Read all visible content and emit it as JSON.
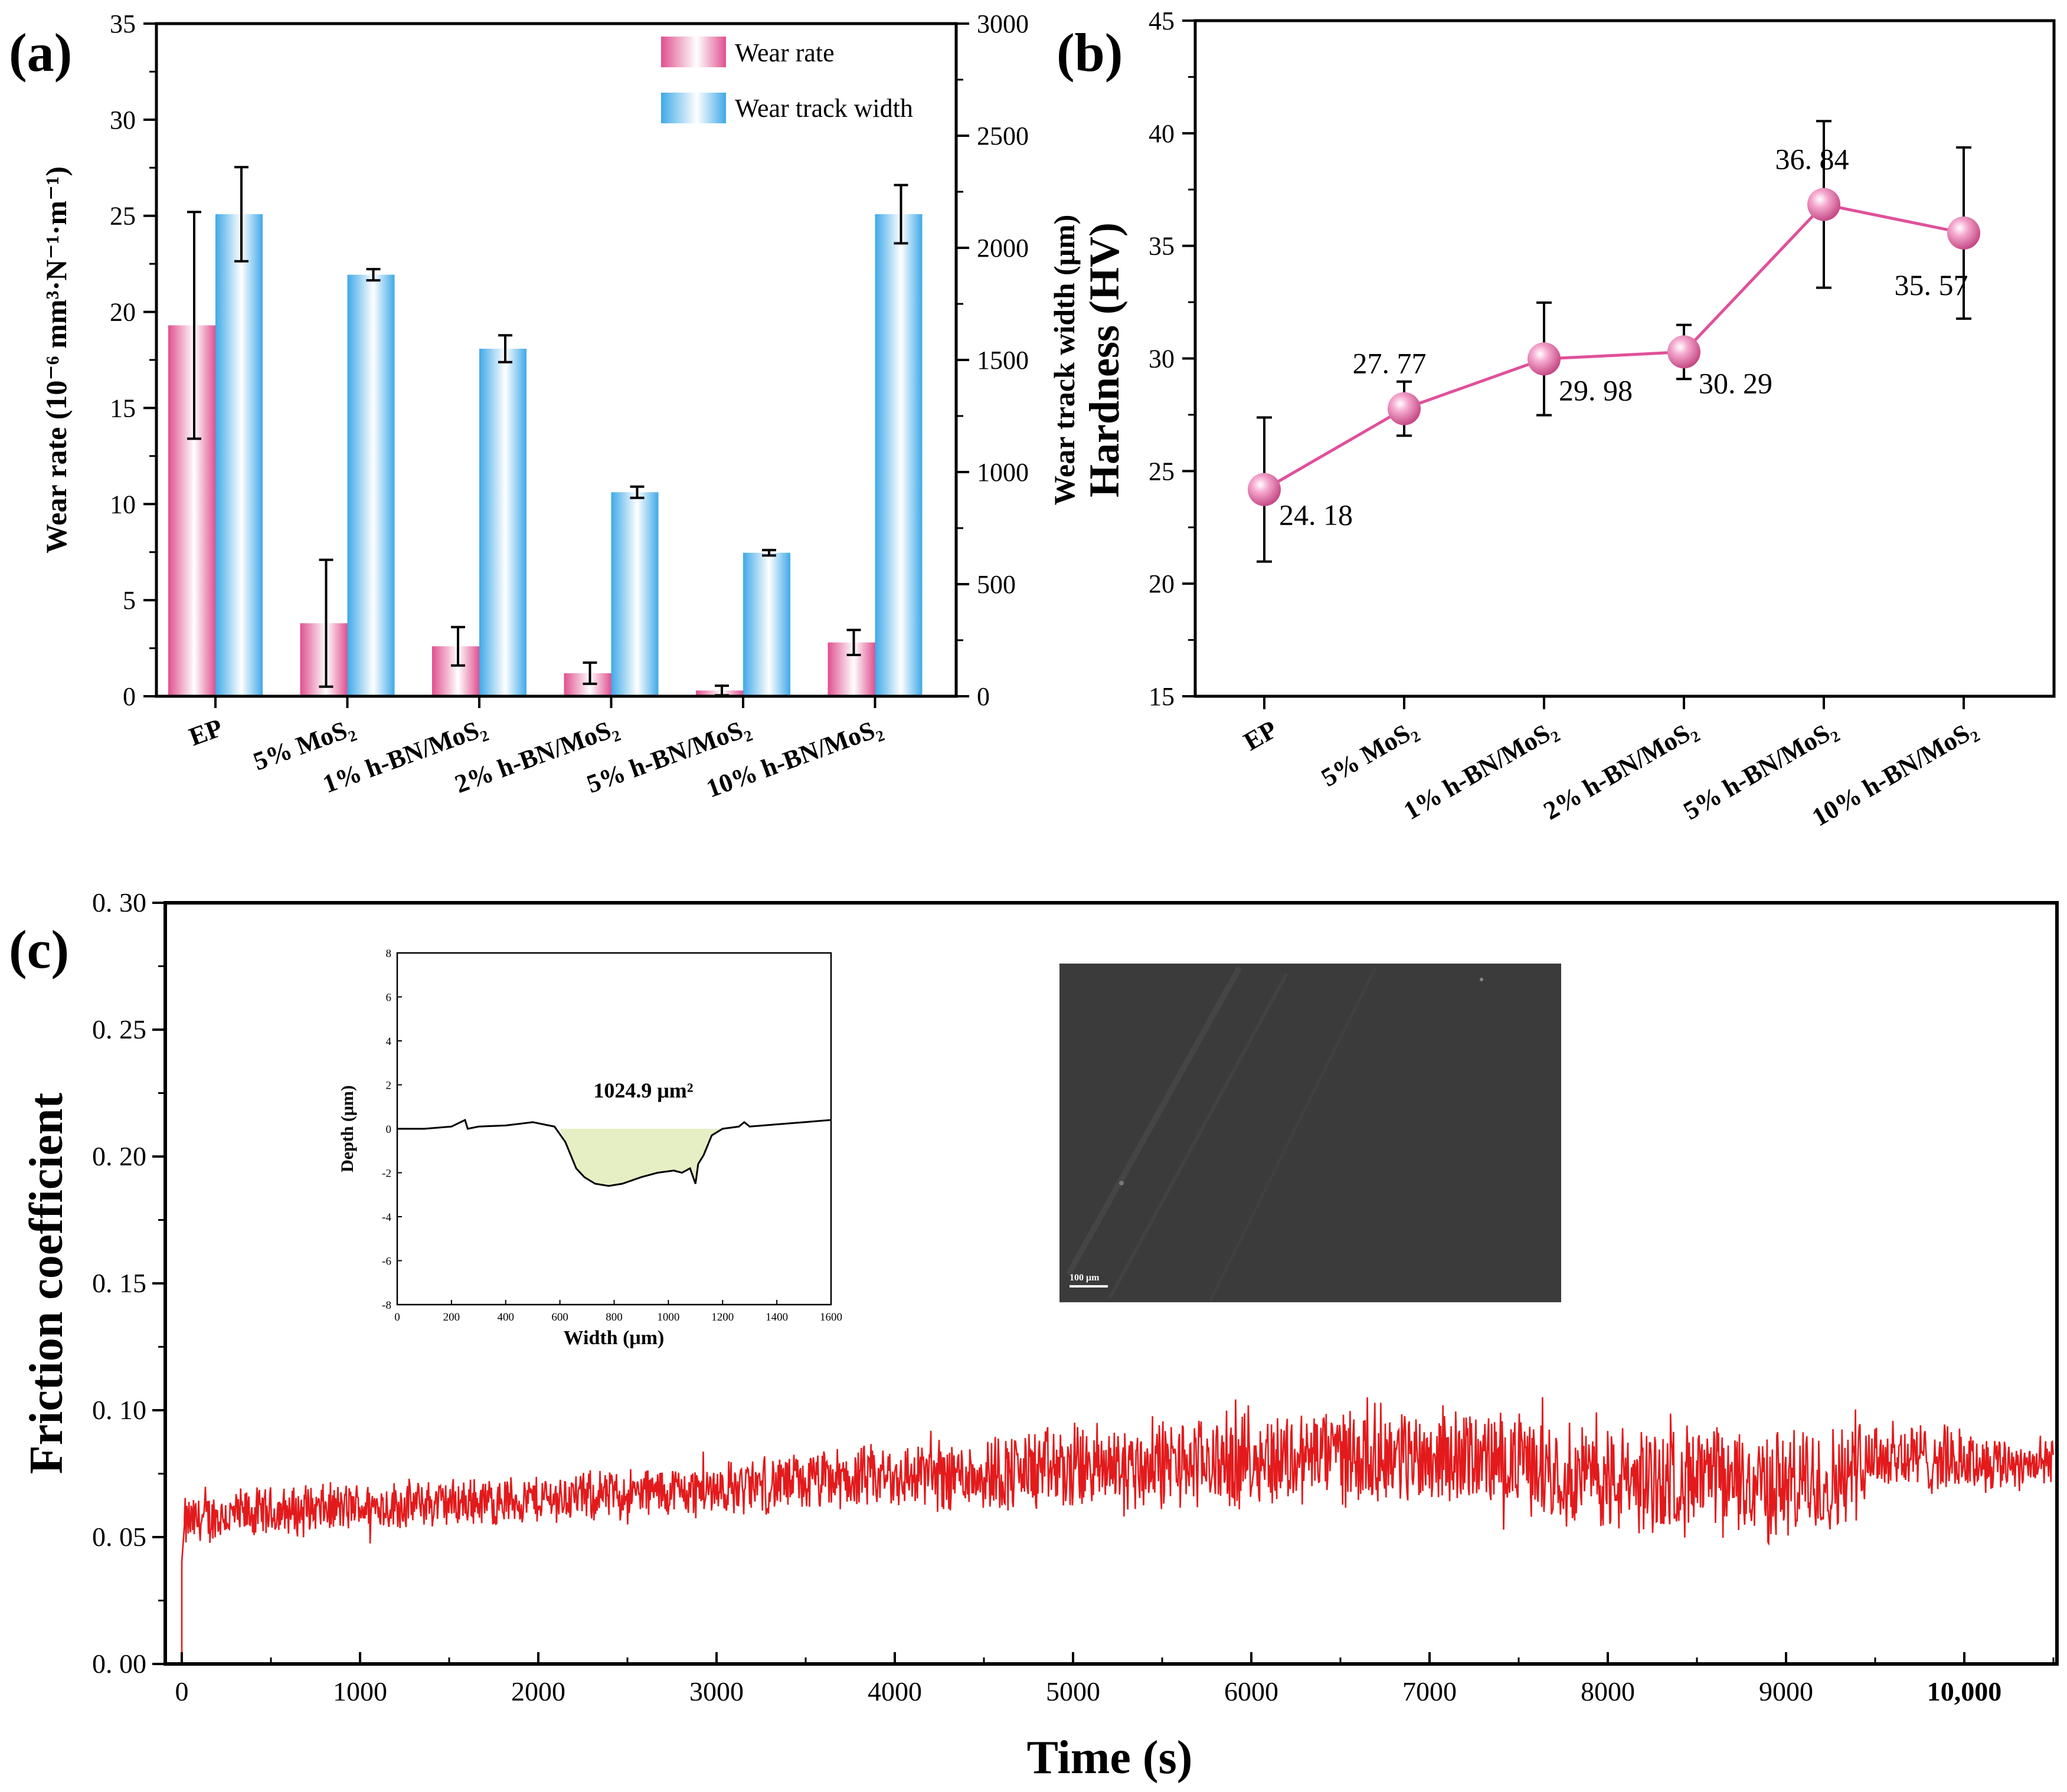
{
  "panel_labels": {
    "a": "(a)",
    "b": "(b)",
    "c": "(c)"
  },
  "colors": {
    "pink": "#e0508f",
    "blue": "#3fa9e8",
    "red": "#e31a1c",
    "line_pink": "#e0509a",
    "inset_fill": "#e6efc4"
  },
  "chart_data": [
    {
      "id": "a",
      "type": "bar",
      "categories": [
        "EP",
        "5% MoS₂",
        "1% h-BN/MoS₂",
        "2% h-BN/MoS₂",
        "5% h-BN/MoS₂",
        "10% h-BN/MoS₂"
      ],
      "ylabel": "Wear rate (10⁻⁶ mm³·N⁻¹·m⁻¹)",
      "y2label": "Wear track width (μm)",
      "ylim": [
        0,
        35
      ],
      "y2lim": [
        0,
        3000
      ],
      "yticks": [
        "0",
        "5",
        "10",
        "15",
        "20",
        "25",
        "30",
        "35"
      ],
      "y2ticks": [
        "0",
        "500",
        "1000",
        "1500",
        "2000",
        "2500",
        "3000"
      ],
      "legend": [
        "Wear rate",
        "Wear track width"
      ],
      "legend_position": "top-right",
      "series": [
        {
          "name": "Wear rate",
          "axis": "left",
          "values": [
            19.3,
            3.8,
            2.6,
            1.2,
            0.3,
            2.8
          ],
          "errors": [
            5.9,
            3.3,
            1.0,
            0.55,
            0.25,
            0.65
          ]
        },
        {
          "name": "Wear track width",
          "axis": "right",
          "values": [
            2150,
            1880,
            1550,
            910,
            640,
            2150
          ],
          "errors": [
            210,
            25,
            60,
            25,
            12,
            130
          ]
        }
      ]
    },
    {
      "id": "b",
      "type": "line",
      "categories": [
        "EP",
        "5% MoS₂",
        "1% h-BN/MoS₂",
        "2% h-BN/MoS₂",
        "5% h-BN/MoS₂",
        "10% h-BN/MoS₂"
      ],
      "ylabel": "Hardness (HV)",
      "ylim": [
        15,
        45
      ],
      "yticks": [
        "15",
        "20",
        "25",
        "30",
        "35",
        "40",
        "45"
      ],
      "values": [
        24.18,
        27.77,
        29.98,
        30.29,
        36.84,
        35.57
      ],
      "errors": [
        3.2,
        1.2,
        2.5,
        1.2,
        3.7,
        3.8
      ],
      "data_labels": [
        "24. 18",
        "27. 77",
        "29. 98",
        "30. 29",
        "36. 84",
        "35. 57"
      ]
    },
    {
      "id": "c",
      "type": "line",
      "xlabel": "Time (s)",
      "ylabel": "Friction coefficient",
      "xlim": [
        0,
        10500
      ],
      "ylim": [
        0,
        0.3
      ],
      "xticks": [
        "0",
        "1000",
        "2000",
        "3000",
        "4000",
        "5000",
        "6000",
        "7000",
        "8000",
        "9000",
        "10,000"
      ],
      "yticks": [
        "0. 00",
        "0. 05",
        "0. 10",
        "0. 15",
        "0. 20",
        "0. 25",
        "0. 30"
      ],
      "trend": {
        "t": [
          0,
          200,
          1000,
          2000,
          3000,
          4000,
          5000,
          6000,
          6500,
          7000,
          7500,
          8000,
          8500,
          9000,
          9300,
          9400,
          10000,
          10500
        ],
        "mean": [
          0.055,
          0.058,
          0.062,
          0.065,
          0.069,
          0.074,
          0.077,
          0.08,
          0.083,
          0.082,
          0.08,
          0.072,
          0.073,
          0.07,
          0.072,
          0.083,
          0.08,
          0.079
        ],
        "amp": [
          0.012,
          0.012,
          0.011,
          0.011,
          0.012,
          0.015,
          0.02,
          0.021,
          0.022,
          0.022,
          0.021,
          0.025,
          0.024,
          0.026,
          0.025,
          0.02,
          0.014,
          0.011
        ]
      }
    },
    {
      "id": "c-inset-profile",
      "type": "area",
      "xlabel": "Width (μm)",
      "ylabel": "Depth (μm)",
      "xlim": [
        0,
        1600
      ],
      "ylim": [
        -8,
        8
      ],
      "xticks": [
        "0",
        "200",
        "400",
        "600",
        "800",
        "1000",
        "1200",
        "1400",
        "1600"
      ],
      "yticks": [
        "-8",
        "-6",
        "-4",
        "-2",
        "0",
        "2",
        "4",
        "6",
        "8"
      ],
      "annotation": "1024.9 μm²",
      "x": [
        0,
        100,
        200,
        250,
        260,
        300,
        400,
        500,
        580,
        620,
        660,
        690,
        730,
        780,
        830,
        900,
        960,
        1020,
        1050,
        1080,
        1100,
        1110,
        1130,
        1160,
        1200,
        1260,
        1280,
        1300,
        1400,
        1500,
        1600
      ],
      "y": [
        0.0,
        0.0,
        0.1,
        0.4,
        0.0,
        0.1,
        0.15,
        0.3,
        0.1,
        -0.6,
        -1.8,
        -2.2,
        -2.5,
        -2.6,
        -2.5,
        -2.2,
        -2.0,
        -1.9,
        -2.0,
        -1.8,
        -2.5,
        -1.6,
        -1.2,
        -0.3,
        0.0,
        0.1,
        0.3,
        0.1,
        0.2,
        0.3,
        0.4
      ]
    }
  ],
  "micrograph": {
    "scale_label": "100 μm"
  }
}
